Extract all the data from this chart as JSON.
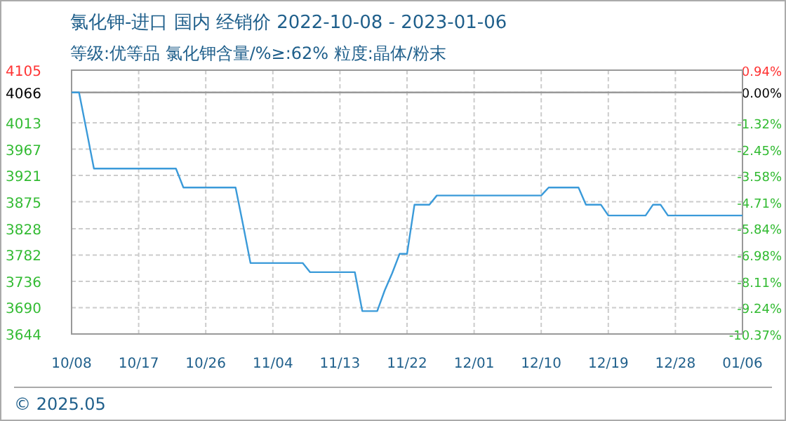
{
  "chart_data": {
    "type": "line",
    "title": "氯化钾-进口 国内 经销价 2022-10-08 - 2023-01-06",
    "subtitle": "等级:优等品 氯化钾含量/%≥:62% 粒度:晶体/粉末",
    "x": [
      "2022-10-08",
      "2022-10-09",
      "2022-10-10",
      "2022-10-11",
      "2022-10-22",
      "2022-10-23",
      "2022-10-30",
      "2022-10-31",
      "2022-11-01",
      "2022-11-08",
      "2022-11-09",
      "2022-11-15",
      "2022-11-16",
      "2022-11-18",
      "2022-11-19",
      "2022-11-20",
      "2022-11-21",
      "2022-11-22",
      "2022-11-23",
      "2022-11-25",
      "2022-11-26",
      "2022-12-10",
      "2022-12-11",
      "2022-12-15",
      "2022-12-16",
      "2022-12-18",
      "2022-12-19",
      "2022-12-24",
      "2022-12-25",
      "2022-12-26",
      "2022-12-27",
      "2023-01-06"
    ],
    "series": [
      {
        "color": "#3a9ad9",
        "values": [
          4066,
          4066,
          4000,
          3933,
          3933,
          3900,
          3900,
          3835,
          3768,
          3768,
          3752,
          3752,
          3684,
          3684,
          3720,
          3750,
          3784,
          3784,
          3870,
          3870,
          3886,
          3886,
          3900,
          3900,
          3870,
          3870,
          3851,
          3851,
          3870,
          3870,
          3851,
          3851
        ]
      }
    ],
    "xlim": [
      "2022-10-08",
      "2023-01-06"
    ],
    "xticks": [
      {
        "value": "2022-10-08",
        "label": "10/08"
      },
      {
        "value": "2022-10-17",
        "label": "10/17"
      },
      {
        "value": "2022-10-26",
        "label": "10/26"
      },
      {
        "value": "2022-11-04",
        "label": "11/04"
      },
      {
        "value": "2022-11-13",
        "label": "11/13"
      },
      {
        "value": "2022-11-22",
        "label": "11/22"
      },
      {
        "value": "2022-12-01",
        "label": "12/01"
      },
      {
        "value": "2022-12-10",
        "label": "12/10"
      },
      {
        "value": "2022-12-19",
        "label": "12/19"
      },
      {
        "value": "2022-12-28",
        "label": "12/28"
      },
      {
        "value": "2023-01-06",
        "label": "01/06"
      }
    ],
    "ylim": [
      3644,
      4105
    ],
    "yticks": [
      3644,
      3690,
      3736,
      3782,
      3828,
      3875,
      3921,
      3967,
      4013,
      4066,
      4105
    ],
    "y2lim": [
      -10.37,
      0.94
    ],
    "y2ticks": [
      {
        "value": 0.94,
        "label": "0.94%"
      },
      {
        "value": 0,
        "label": "0.00%"
      },
      {
        "value": -1.32,
        "label": "-1.32%"
      },
      {
        "value": -2.45,
        "label": "-2.45%"
      },
      {
        "value": -3.58,
        "label": "-3.58%"
      },
      {
        "value": -4.71,
        "label": "-4.71%"
      },
      {
        "value": -5.84,
        "label": "-5.84%"
      },
      {
        "value": -6.98,
        "label": "-6.98%"
      },
      {
        "value": -8.11,
        "label": "-8.11%"
      },
      {
        "value": -9.24,
        "label": "-9.24%"
      },
      {
        "value": -10.37,
        "label": "-10.37%"
      }
    ],
    "ref_lines": [
      {
        "axis": "y",
        "value": 4066,
        "color": "#999999"
      }
    ],
    "grid": true,
    "line_style": "solid",
    "marker": "none",
    "annotations": [
      "© 2025.05"
    ]
  }
}
